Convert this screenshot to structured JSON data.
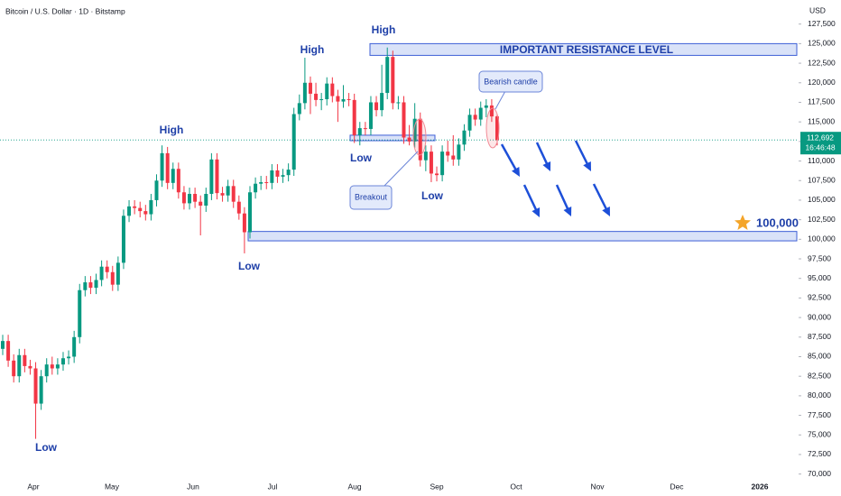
{
  "chart_data": {
    "type": "candlestick",
    "title": "Bitcoin / U.S. Dollar · 1D · Bitstamp",
    "y_axis_label": "USD",
    "up_color": "#089981",
    "down_color": "#f23645",
    "ylim": [
      69500,
      130000
    ],
    "yticks": [
      {
        "value": 70000,
        "label": "70,000"
      },
      {
        "value": 72500,
        "label": "72,500"
      },
      {
        "value": 75000,
        "label": "75,000"
      },
      {
        "value": 77500,
        "label": "77,500"
      },
      {
        "value": 80000,
        "label": "80,000"
      },
      {
        "value": 82500,
        "label": "82,500"
      },
      {
        "value": 85000,
        "label": "85,000"
      },
      {
        "value": 87500,
        "label": "87,500"
      },
      {
        "value": 90000,
        "label": "90,000"
      },
      {
        "value": 92500,
        "label": "92,500"
      },
      {
        "value": 95000,
        "label": "95,000"
      },
      {
        "value": 97500,
        "label": "97,500"
      },
      {
        "value": 100000,
        "label": "100,000"
      },
      {
        "value": 102500,
        "label": "102,500"
      },
      {
        "value": 105000,
        "label": "105,000"
      },
      {
        "value": 107500,
        "label": "107,500"
      },
      {
        "value": 110000,
        "label": "110,000"
      },
      {
        "value": 112500,
        "label": "112,500"
      },
      {
        "value": 115000,
        "label": "115,000"
      },
      {
        "value": 117500,
        "label": "117,500"
      },
      {
        "value": 120000,
        "label": "120,000"
      },
      {
        "value": 122500,
        "label": "122,500"
      },
      {
        "value": 125000,
        "label": "125,000"
      },
      {
        "value": 127500,
        "label": "127,500"
      }
    ],
    "xticks": [
      "Apr",
      "May",
      "Jun",
      "Jul",
      "Aug",
      "Sep",
      "Oct",
      "Nov",
      "Dec",
      "2026"
    ],
    "open": [
      86000,
      87000,
      84500,
      82500,
      85200,
      83800,
      83500,
      79000,
      82500,
      84000,
      83500,
      84000,
      84800,
      85000,
      87500,
      93500,
      94500,
      93800,
      94800,
      96500,
      95800,
      94200,
      97000,
      103000,
      104200,
      104000,
      103600,
      103200,
      105000,
      107500,
      111000,
      107200,
      109000,
      106000,
      104600,
      105800,
      104800,
      104300,
      105800,
      110200,
      105900,
      105600,
      106800,
      104800,
      103300,
      100900,
      106000,
      107100,
      107300,
      107200,
      108800,
      108000,
      108200,
      108900,
      116000,
      117400,
      120000,
      118600,
      117800,
      117900,
      119900,
      118300,
      117600,
      117900,
      117800,
      113300,
      114200,
      114100,
      117500,
      116500,
      118700,
      123300,
      117400,
      117500,
      113000,
      112500,
      115400,
      110100,
      111200,
      108400,
      108200,
      111200,
      110700,
      110200,
      112100,
      113900,
      115900,
      115300,
      116800,
      117100,
      115700
    ],
    "high": [
      87800,
      87800,
      85300,
      86000,
      86000,
      84600,
      84300,
      83300,
      84800,
      85000,
      84800,
      85600,
      85800,
      88300,
      94300,
      95300,
      95300,
      95600,
      97300,
      97300,
      96600,
      97800,
      103800,
      105000,
      105000,
      104800,
      104400,
      105800,
      108300,
      112000,
      111800,
      109800,
      109800,
      106800,
      106600,
      106600,
      105600,
      106600,
      111000,
      111000,
      106700,
      107600,
      107600,
      105600,
      104100,
      106800,
      107900,
      108100,
      108100,
      109600,
      109600,
      109000,
      109700,
      116800,
      118500,
      123200,
      120800,
      120000,
      118700,
      120700,
      120700,
      119100,
      119700,
      118700,
      118600,
      115000,
      115000,
      118300,
      118300,
      122300,
      124500,
      124100,
      118300,
      118300,
      114600,
      117400,
      116200,
      112000,
      112000,
      109300,
      112000,
      112600,
      113300,
      112900,
      114700,
      116700,
      116700,
      117600,
      117900,
      117900,
      116000
    ],
    "low": [
      85200,
      83700,
      81700,
      81700,
      83000,
      82700,
      74500,
      78200,
      81700,
      82700,
      82700,
      83200,
      84000,
      84200,
      86700,
      92700,
      93000,
      93000,
      94000,
      95000,
      93400,
      93400,
      96200,
      102200,
      103200,
      102800,
      102400,
      102400,
      104200,
      106700,
      106400,
      106400,
      105200,
      103800,
      103800,
      104000,
      100500,
      103500,
      105000,
      105100,
      104800,
      104800,
      104000,
      102500,
      98200,
      100100,
      105200,
      106300,
      106400,
      106400,
      107200,
      107200,
      107400,
      108100,
      115200,
      116600,
      116000,
      117000,
      116500,
      117100,
      117500,
      115000,
      116800,
      117000,
      112300,
      112000,
      113300,
      113300,
      115700,
      115700,
      117900,
      116600,
      116600,
      112200,
      112000,
      111700,
      109300,
      108700,
      107300,
      107400,
      107400,
      109900,
      109400,
      109400,
      111300,
      113100,
      114500,
      114500,
      115600,
      115000,
      112000
    ],
    "close": [
      87000,
      84500,
      82500,
      85200,
      83800,
      83500,
      79000,
      82500,
      84000,
      83500,
      84000,
      84800,
      85000,
      87500,
      93500,
      94500,
      93800,
      94800,
      96500,
      95800,
      94200,
      97000,
      103000,
      104200,
      104000,
      103600,
      103200,
      105000,
      107500,
      111000,
      107200,
      109000,
      106000,
      104600,
      105800,
      104800,
      104300,
      105800,
      110200,
      105900,
      105600,
      106800,
      104800,
      103300,
      100900,
      106000,
      107100,
      107300,
      107200,
      108800,
      108000,
      108200,
      108900,
      116000,
      117400,
      120000,
      118600,
      117800,
      117900,
      119900,
      118300,
      117600,
      117900,
      117800,
      113300,
      114200,
      114100,
      117500,
      116500,
      118700,
      123300,
      117400,
      117500,
      113000,
      112500,
      115400,
      110100,
      111200,
      108400,
      108200,
      111200,
      110700,
      110200,
      112100,
      113900,
      115900,
      115300,
      116800,
      117100,
      115700,
      112692
    ],
    "current_price": {
      "value": 112692,
      "label": "112,692"
    },
    "countdown": "16:46:48",
    "zones": [
      {
        "label": "IMPORTANT RESISTANCE LEVEL",
        "range": [
          123500,
          125000
        ]
      },
      {
        "label": "100,000",
        "range": [
          99800,
          101000
        ]
      },
      {
        "range": [
          112600,
          113300
        ]
      }
    ],
    "annotations": [
      "High",
      "High",
      "High",
      "Low",
      "Low",
      "Low",
      "Low",
      "Breakout",
      "Bearish candle"
    ]
  }
}
